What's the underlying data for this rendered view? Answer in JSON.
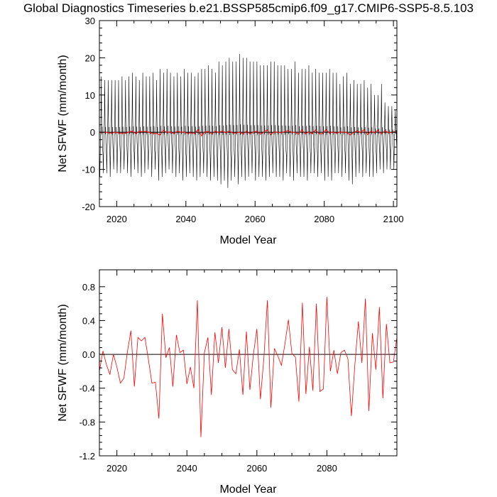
{
  "title": "Global Diagnostics Timeseries b.e21.BSSP585cmip6.f09_g17.CMIP6-SSP5-8.5.103",
  "colors": {
    "monthly": "#000000",
    "annual": "#ff0000",
    "zero_line": "#000000"
  },
  "chart_data": [
    {
      "type": "line",
      "xlabel": "Model Year",
      "ylabel": "Net SFWF (mm/month)",
      "xlim": [
        2015,
        2101
      ],
      "ylim": [
        -20,
        30
      ],
      "xticks": [
        2020,
        2040,
        2060,
        2080,
        2100
      ],
      "xtick_labels": [
        "2020",
        "2040",
        "2060",
        "2080",
        "2100"
      ],
      "yticks": [
        -20,
        -10,
        0,
        10,
        20,
        30
      ],
      "ytick_labels": [
        "-20",
        "-10",
        "0",
        "10",
        "20",
        "30"
      ],
      "grid": false,
      "legend": "none",
      "series": [
        {
          "style": "monthly",
          "x_start": 2015,
          "x_end": 2101,
          "annual_max": [
            15,
            14,
            14,
            14,
            14,
            14,
            15,
            14,
            15,
            16,
            15,
            14,
            16,
            15,
            15,
            16,
            14,
            17,
            16,
            17,
            16,
            15,
            16,
            15,
            17,
            16,
            16,
            15,
            16,
            17,
            17,
            18,
            17,
            16,
            19,
            18,
            19,
            20,
            19,
            19,
            21,
            20,
            20,
            19,
            19,
            19,
            18,
            18,
            18,
            19,
            19,
            18,
            18,
            18,
            17,
            17,
            19,
            16,
            17,
            17,
            18,
            16,
            17,
            16,
            16,
            16,
            17,
            16,
            16,
            13,
            15,
            16,
            13,
            14,
            13,
            13,
            14,
            12,
            13,
            10,
            10,
            13,
            8,
            7,
            7,
            6
          ],
          "annual_min": [
            -12,
            -11,
            -11,
            -12,
            -10,
            -11,
            -11,
            -10,
            -11,
            -12,
            -10,
            -11,
            -12,
            -11,
            -10,
            -12,
            -10,
            -13,
            -12,
            -11,
            -10,
            -11,
            -12,
            -11,
            -13,
            -12,
            -11,
            -12,
            -13,
            -12,
            -11,
            -12,
            -13,
            -12,
            -13,
            -14,
            -13,
            -15,
            -13,
            -12,
            -14,
            -12,
            -13,
            -12,
            -11,
            -13,
            -12,
            -12,
            -13,
            -12,
            -11,
            -12,
            -12,
            -13,
            -11,
            -12,
            -13,
            -11,
            -12,
            -12,
            -13,
            -11,
            -11,
            -12,
            -11,
            -13,
            -12,
            -13,
            -11,
            -11,
            -12,
            -11,
            -13,
            -14,
            -12,
            -11,
            -12,
            -11,
            -12,
            -12,
            -11,
            -10,
            -11,
            -10,
            -10,
            -10
          ]
        },
        {
          "style": "annual",
          "x_start": 2015.5,
          "note": "",
          "values_ref": "panel2"
        }
      ]
    },
    {
      "type": "line",
      "xlabel": "Model Year",
      "ylabel": "Net SFWF (mm/month)",
      "xlim": [
        2015,
        2100
      ],
      "ylim": [
        -1.2,
        1.0
      ],
      "xticks": [
        2020,
        2040,
        2060,
        2080
      ],
      "xtick_labels": [
        "2020",
        "2040",
        "2060",
        "2080"
      ],
      "yticks": [
        -1.2,
        -0.8,
        -0.4,
        0.0,
        0.4,
        0.8
      ],
      "ytick_labels": [
        "-1.2",
        "-0.8",
        "-0.4",
        "0.0",
        "0.4",
        "0.8"
      ],
      "grid": false,
      "legend": "none",
      "series": [
        {
          "style": "annual",
          "x": [
            2015,
            2016,
            2017,
            2018,
            2019,
            2020,
            2021,
            2022,
            2023,
            2024,
            2025,
            2026,
            2027,
            2028,
            2029,
            2030,
            2031,
            2032,
            2033,
            2034,
            2035,
            2036,
            2037,
            2038,
            2039,
            2040,
            2041,
            2042,
            2043,
            2044,
            2045,
            2046,
            2047,
            2048,
            2049,
            2050,
            2051,
            2052,
            2053,
            2054,
            2055,
            2056,
            2057,
            2058,
            2059,
            2060,
            2061,
            2062,
            2063,
            2064,
            2065,
            2066,
            2067,
            2068,
            2069,
            2070,
            2071,
            2072,
            2073,
            2074,
            2075,
            2076,
            2077,
            2078,
            2079,
            2080,
            2081,
            2082,
            2083,
            2084,
            2085,
            2086,
            2087,
            2088,
            2089,
            2090,
            2091,
            2092,
            2093,
            2094,
            2095,
            2096,
            2097,
            2098,
            2099,
            2100
          ],
          "values": [
            -0.2,
            0.04,
            -0.12,
            -0.24,
            0.0,
            -0.15,
            -0.34,
            -0.28,
            0.03,
            0.28,
            -0.38,
            0.2,
            0.16,
            0.2,
            -0.06,
            -0.34,
            -0.33,
            -0.76,
            0.48,
            -0.04,
            0.08,
            -0.38,
            0.23,
            0.02,
            0.05,
            -0.35,
            -0.15,
            -0.4,
            0.64,
            -0.98,
            0.02,
            0.2,
            -0.48,
            0.26,
            -0.1,
            0.32,
            -0.16,
            0.3,
            -0.18,
            -0.23,
            0.06,
            -0.48,
            0.27,
            -0.42,
            0.0,
            0.3,
            -0.53,
            -0.04,
            0.64,
            -0.63,
            0.07,
            -0.02,
            -0.13,
            0.12,
            0.41,
            0.01,
            -0.03,
            -0.56,
            0.61,
            -0.47,
            0.09,
            -0.43,
            0.6,
            -0.44,
            -0.41,
            0.68,
            -0.2,
            0.05,
            -0.23,
            0.02,
            0.05,
            -0.05,
            -0.73,
            -0.12,
            0.39,
            -0.1,
            0.66,
            -0.67,
            0.25,
            -0.18,
            0.56,
            -0.52,
            0.36,
            -0.1,
            -0.09,
            0.2
          ]
        }
      ]
    }
  ]
}
